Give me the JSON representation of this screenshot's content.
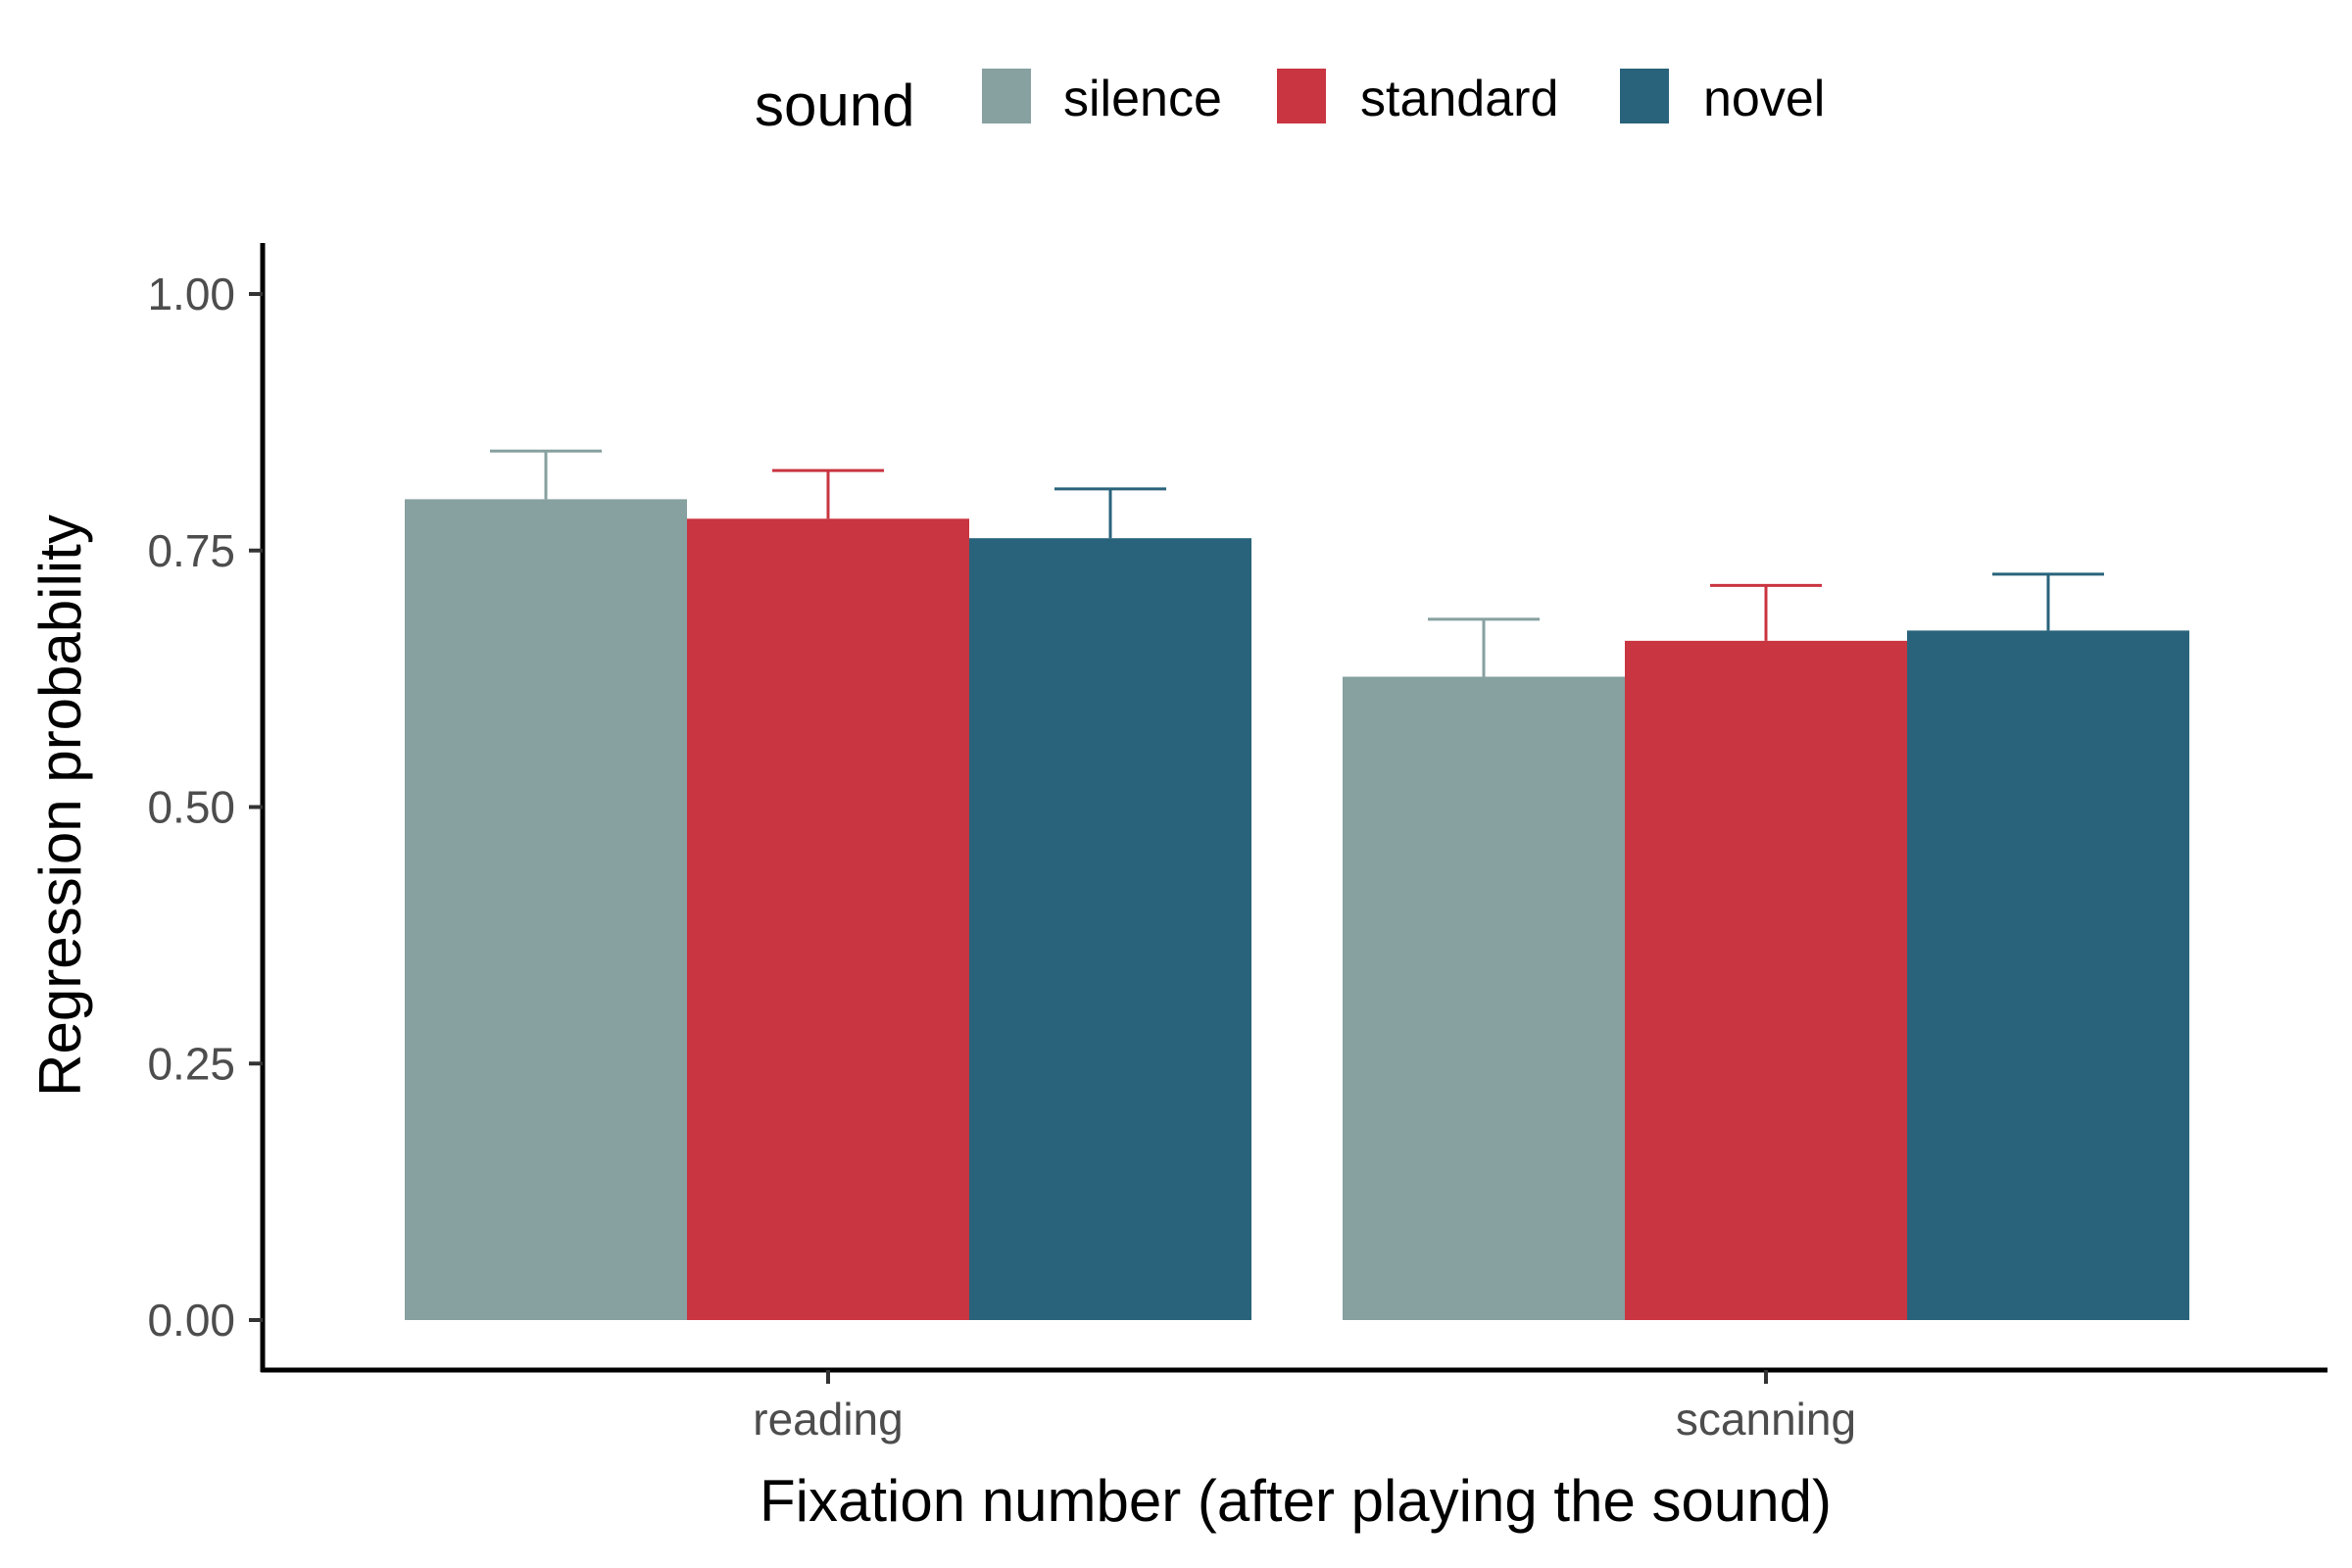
{
  "chart_data": {
    "type": "bar",
    "xlabel": "Fixation number (after playing the sound)",
    "ylabel": "Regression probability",
    "categories": [
      "reading",
      "scanning"
    ],
    "ylim": [
      0,
      1.05
    ],
    "yticks": [
      "0.00",
      "0.25",
      "0.50",
      "0.75",
      "1.00"
    ],
    "legend": {
      "title": "sound",
      "placement": "top"
    },
    "grid": false,
    "series": [
      {
        "name": "silence",
        "color": "#87a0a0",
        "values": [
          0.8,
          0.627
        ],
        "error_upper": [
          0.847,
          0.683
        ]
      },
      {
        "name": "standard",
        "color": "#c93540",
        "values": [
          0.781,
          0.662
        ],
        "error_upper": [
          0.828,
          0.716
        ]
      },
      {
        "name": "novel",
        "color": "#29637b",
        "values": [
          0.762,
          0.672
        ],
        "error_upper": [
          0.81,
          0.727
        ]
      }
    ]
  }
}
